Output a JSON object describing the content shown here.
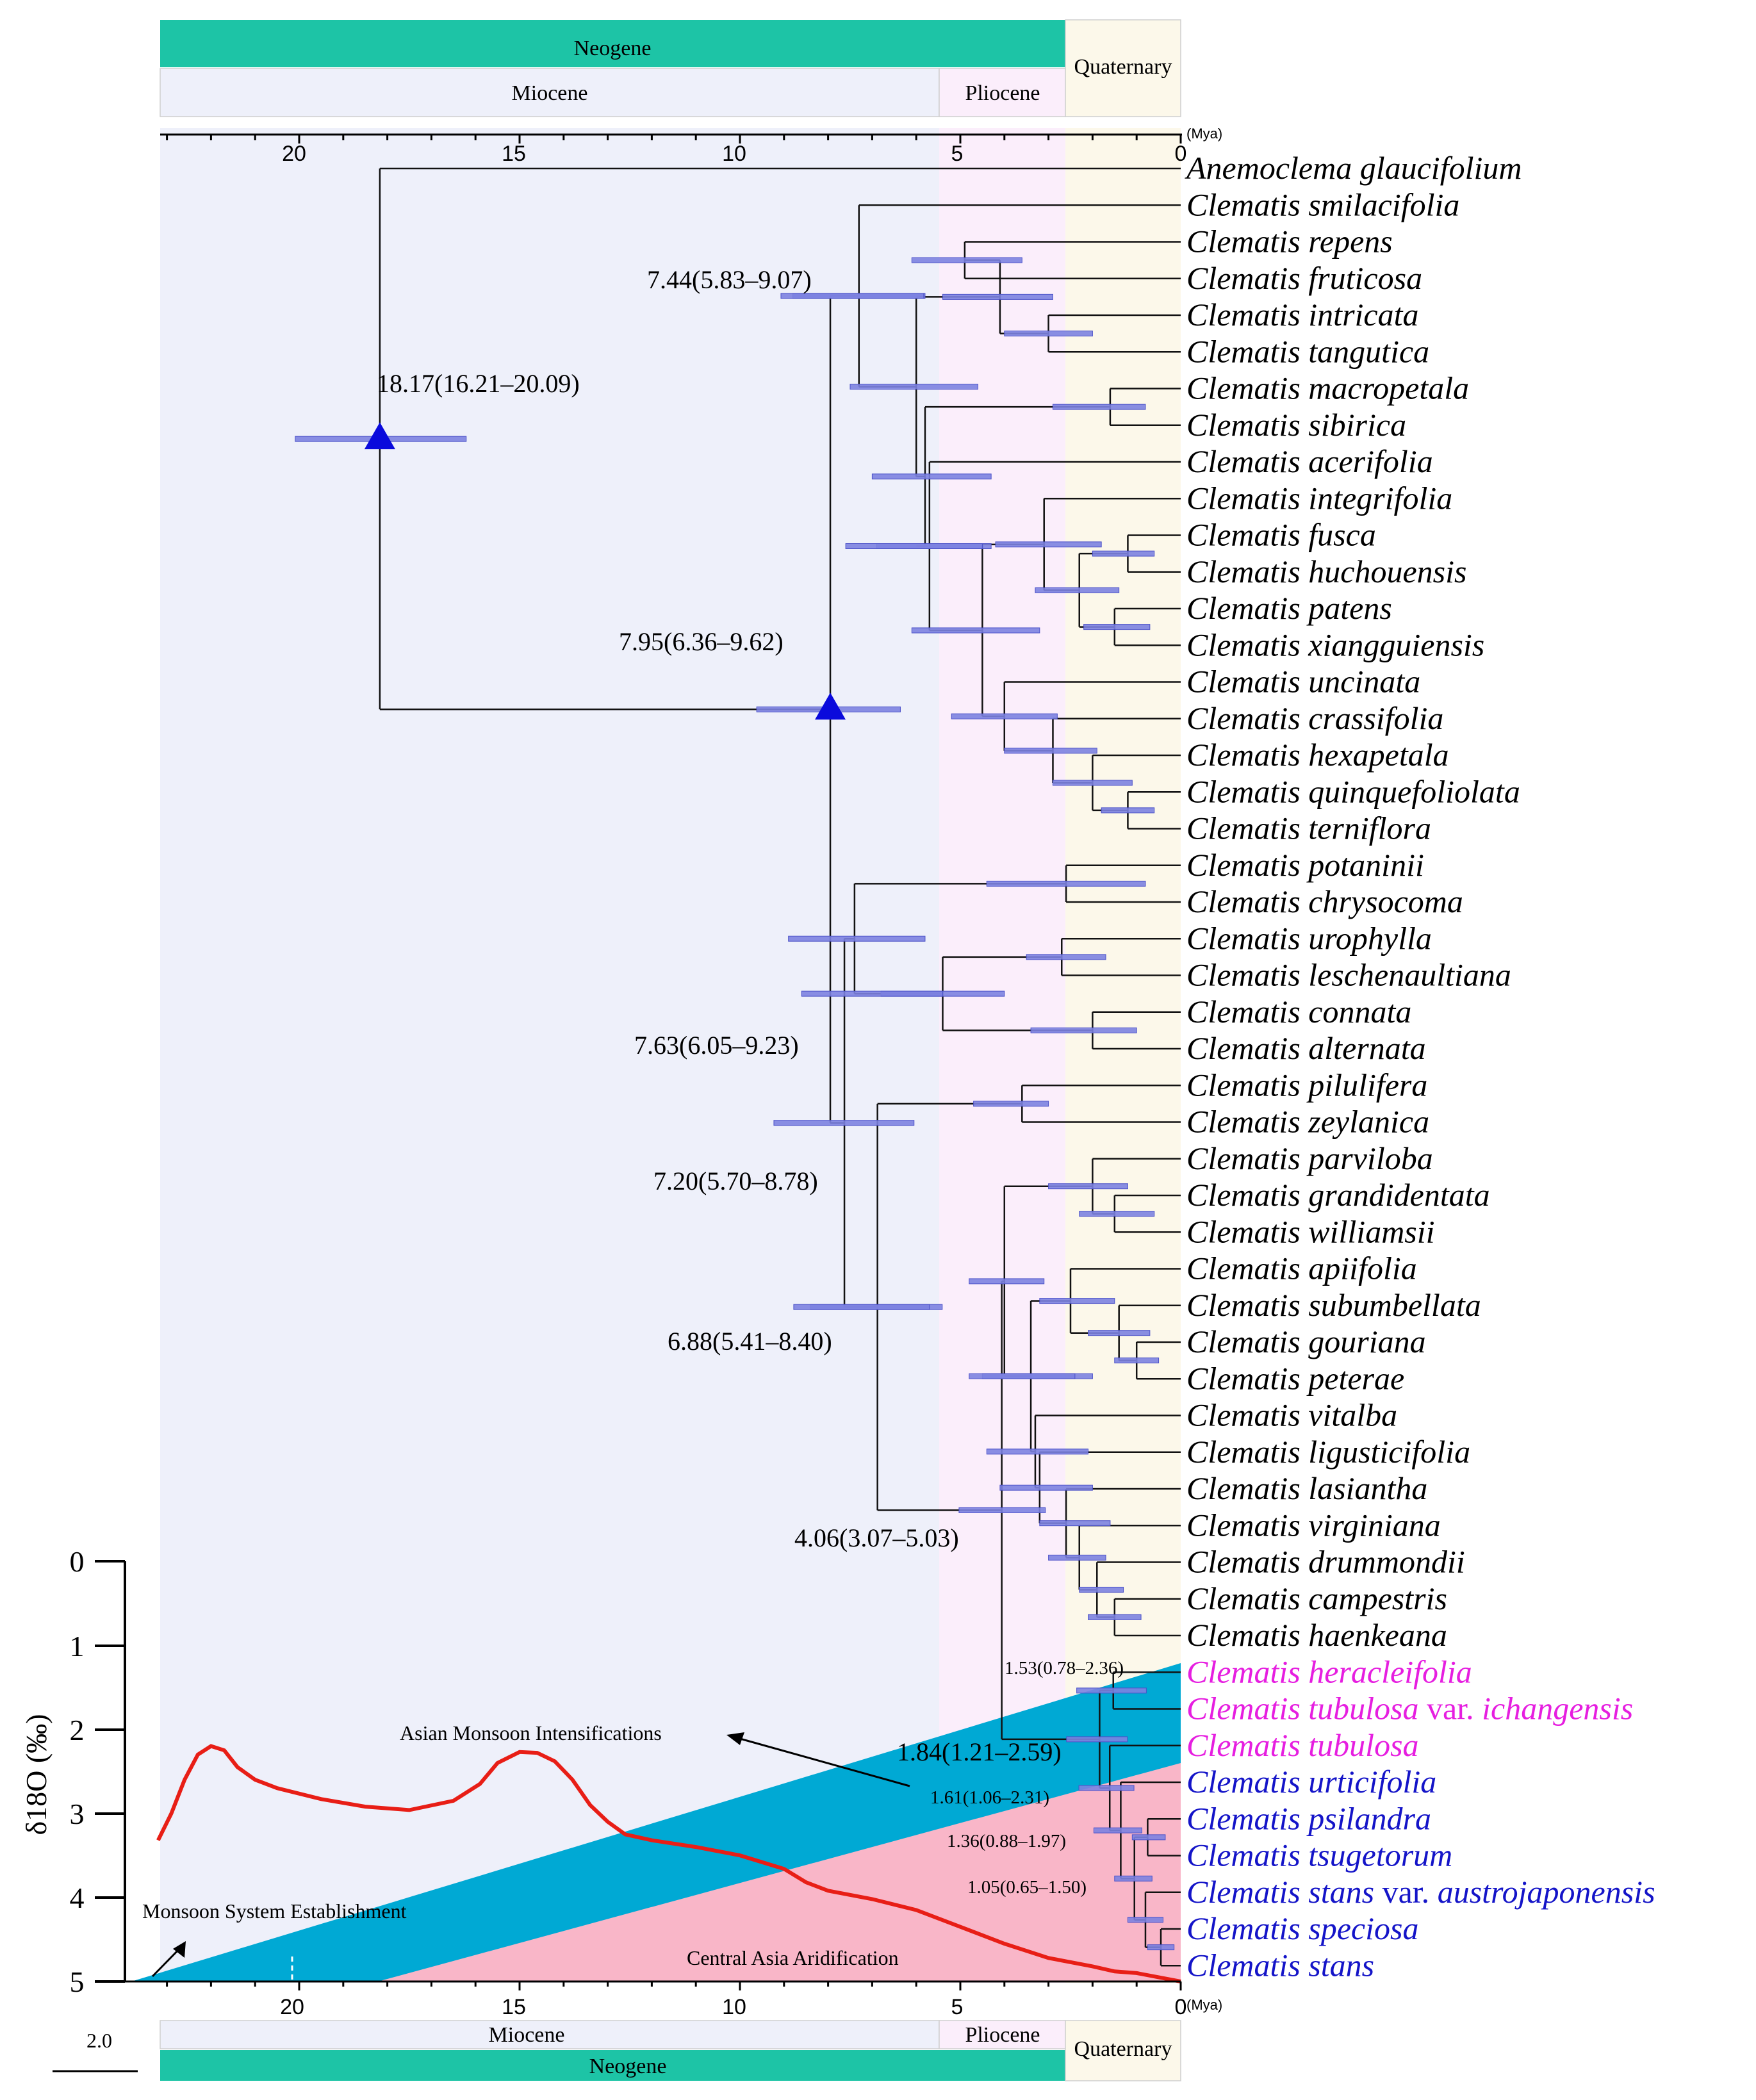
{
  "time_axis": {
    "unit": "(Mya)",
    "ticks": [
      "20",
      "15",
      "10",
      "5",
      "0"
    ],
    "tick_values": [
      20,
      15,
      10,
      5,
      0
    ],
    "max_mya": 23.2
  },
  "periods": {
    "neogene": "Neogene",
    "quaternary": "Quaternary",
    "miocene": "Miocene",
    "pliocene": "Pliocene",
    "pliocene_start_mya": 5.33,
    "quaternary_start_mya": 2.58
  },
  "colors": {
    "neogene": "#1dc4a6",
    "miocene": "#eef0fa",
    "pliocene": "#fbeefb",
    "quaternary": "#fcf8ea",
    "hpd_bar": "#7c82e0",
    "node_marker": "#0a0adc",
    "magenta_taxa": "#e61ee0",
    "blue_taxa": "#1414c8",
    "monsoon": "#00a9d4",
    "aridification": "#f9b6c8",
    "d18o_curve": "#e81e16"
  },
  "taxa": [
    {
      "name": "Anemoclema glaucifolium",
      "color": "#000000"
    },
    {
      "name": "Clematis smilacifolia",
      "color": "#000000"
    },
    {
      "name": "Clematis repens",
      "color": "#000000"
    },
    {
      "name": "Clematis fruticosa",
      "color": "#000000"
    },
    {
      "name": "Clematis intricata",
      "color": "#000000"
    },
    {
      "name": "Clematis tangutica",
      "color": "#000000"
    },
    {
      "name": "Clematis macropetala",
      "color": "#000000"
    },
    {
      "name": "Clematis sibirica",
      "color": "#000000"
    },
    {
      "name": "Clematis acerifolia",
      "color": "#000000"
    },
    {
      "name": "Clematis integrifolia",
      "color": "#000000"
    },
    {
      "name": "Clematis fusca",
      "color": "#000000"
    },
    {
      "name": "Clematis huchouensis",
      "color": "#000000"
    },
    {
      "name": "Clematis patens",
      "color": "#000000"
    },
    {
      "name": "Clematis xiangguiensis",
      "color": "#000000"
    },
    {
      "name": "Clematis uncinata",
      "color": "#000000"
    },
    {
      "name": "Clematis crassifolia",
      "color": "#000000"
    },
    {
      "name": "Clematis hexapetala",
      "color": "#000000"
    },
    {
      "name": "Clematis quinquefoliolata",
      "color": "#000000"
    },
    {
      "name": "Clematis terniflora",
      "color": "#000000"
    },
    {
      "name": "Clematis potaninii",
      "color": "#000000"
    },
    {
      "name": "Clematis chrysocoma",
      "color": "#000000"
    },
    {
      "name": "Clematis urophylla",
      "color": "#000000"
    },
    {
      "name": "Clematis leschenaultiana",
      "color": "#000000"
    },
    {
      "name": "Clematis connata",
      "color": "#000000"
    },
    {
      "name": "Clematis alternata",
      "color": "#000000"
    },
    {
      "name": "Clematis pilulifera",
      "color": "#000000"
    },
    {
      "name": "Clematis zeylanica",
      "color": "#000000"
    },
    {
      "name": "Clematis parviloba",
      "color": "#000000"
    },
    {
      "name": "Clematis grandidentata",
      "color": "#000000"
    },
    {
      "name": "Clematis williamsii",
      "color": "#000000"
    },
    {
      "name": "Clematis apiifolia",
      "color": "#000000"
    },
    {
      "name": "Clematis subumbellata",
      "color": "#000000"
    },
    {
      "name": "Clematis gouriana",
      "color": "#000000"
    },
    {
      "name": "Clematis peterae",
      "color": "#000000"
    },
    {
      "name": "Clematis vitalba",
      "color": "#000000"
    },
    {
      "name": "Clematis ligusticifolia",
      "color": "#000000"
    },
    {
      "name": "Clematis lasiantha",
      "color": "#000000"
    },
    {
      "name": "Clematis virginiana",
      "color": "#000000"
    },
    {
      "name": "Clematis drummondii",
      "color": "#000000"
    },
    {
      "name": "Clematis campestris",
      "color": "#000000"
    },
    {
      "name": "Clematis haenkeana",
      "color": "#000000"
    },
    {
      "name": "Clematis heracleifolia",
      "color": "#e61ee0"
    },
    {
      "name": "Clematis tubulosa",
      "suffix": " var. ",
      "suffix2": "ichangensis",
      "color": "#e61ee0"
    },
    {
      "name": "Clematis tubulosa",
      "color": "#e61ee0"
    },
    {
      "name": "Clematis urticifolia",
      "color": "#1414c8"
    },
    {
      "name": "Clematis psilandra",
      "color": "#1414c8"
    },
    {
      "name": "Clematis tsugetorum",
      "color": "#1414c8"
    },
    {
      "name": "Clematis stans",
      "suffix": " var. ",
      "suffix2": "austrojaponensis",
      "color": "#1414c8"
    },
    {
      "name": "Clematis speciosa",
      "color": "#1414c8"
    },
    {
      "name": "Clematis stans",
      "color": "#1414c8"
    }
  ],
  "node_labels": {
    "n1": "18.17(16.21–20.09)",
    "n2": "7.95(6.36–9.62)",
    "n3": "7.44(5.83–9.07)",
    "n4": "7.63(6.05–9.23)",
    "n5": "7.20(5.70–8.78)",
    "n6": "6.88(5.41–8.40)",
    "n7": "4.06(3.07–5.03)",
    "n8": "1.53(0.78–2.36)",
    "n9": "1.84(1.21–2.59)",
    "n10": "1.61(1.06–2.31)",
    "n11": "1.36(0.88–1.97)",
    "n12": "1.05(0.65–1.50)"
  },
  "d18o": {
    "axis_label": "δ18O (‰)",
    "ticks": [
      "0",
      "1",
      "2",
      "3",
      "4",
      "5"
    ],
    "tick_values": [
      0,
      1,
      2,
      3,
      4,
      5
    ],
    "curve_mya": [
      23.2,
      22.9,
      22.6,
      22.3,
      22.0,
      21.7,
      21.4,
      21.0,
      20.5,
      19.5,
      18.5,
      17.5,
      16.5,
      15.9,
      15.5,
      15.0,
      14.6,
      14.2,
      13.8,
      13.4,
      13.0,
      12.6,
      12.0,
      11.0,
      10.0,
      9.0,
      8.5,
      8.0,
      7.0,
      6.0,
      5.0,
      4.0,
      3.0,
      2.0,
      1.5,
      1.0,
      0.5,
      0.0
    ],
    "curve_values": [
      3.32,
      3.0,
      2.6,
      2.3,
      2.2,
      2.25,
      2.45,
      2.6,
      2.7,
      2.83,
      2.92,
      2.96,
      2.85,
      2.65,
      2.4,
      2.27,
      2.28,
      2.38,
      2.6,
      2.9,
      3.1,
      3.25,
      3.32,
      3.4,
      3.5,
      3.66,
      3.82,
      3.92,
      4.02,
      4.15,
      4.35,
      4.55,
      4.72,
      4.82,
      4.88,
      4.9,
      4.95,
      5.0
    ]
  },
  "annotations": {
    "asian_monsoon": "Asian Monsoon Intensifications",
    "monsoon_establishment": "Monsoon System Establishment",
    "central_asia": "Central Asia Aridification"
  },
  "scale_bar": "2.0"
}
